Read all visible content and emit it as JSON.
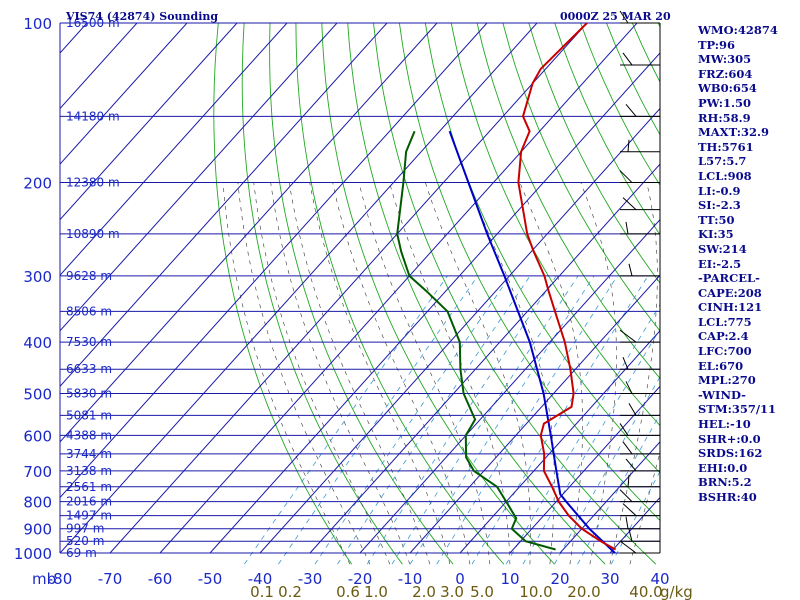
{
  "header": {
    "title": "VIS74 (42874) Sounding",
    "time": "0000Z 25 MAR 20"
  },
  "colors": {
    "grid": "#1a1aa8",
    "dry_adiabat": "#22a822",
    "moist_adiabat": "#333333",
    "mixing_ratio": "#3a9ad6",
    "temperature": "#c80000",
    "dewpoint": "#005a00",
    "parcel": "#0000c8",
    "wind": "#000000"
  },
  "chart_data": {
    "type": "skew-t",
    "title": "VIS74 (42874) Sounding",
    "pressure_axis": {
      "label": "mb",
      "unit": "hPa",
      "range": [
        1000,
        100
      ],
      "ticks": [
        100,
        200,
        300,
        400,
        500,
        600,
        700,
        800,
        900,
        1000
      ]
    },
    "temperature_axis": {
      "unit": "C",
      "range": [
        -80,
        40
      ],
      "ticks": [
        -80,
        -70,
        -60,
        -50,
        -40,
        -30,
        -20,
        -10,
        0,
        10,
        20,
        30,
        40
      ]
    },
    "mixing_ratio_labels": [
      "0.1",
      "0.2",
      "0.6",
      "1.0",
      "2.0",
      "3.0",
      "5.0",
      "10.0",
      "20.0",
      "40.0",
      "g/kg"
    ],
    "height_labels": [
      {
        "p": 100,
        "label": "16500 m"
      },
      {
        "p": 150,
        "label": "14180 m"
      },
      {
        "p": 200,
        "label": "12380 m"
      },
      {
        "p": 250,
        "label": "10890 m"
      },
      {
        "p": 300,
        "label": "9628 m"
      },
      {
        "p": 350,
        "label": "8506 m"
      },
      {
        "p": 400,
        "label": "7530 m"
      },
      {
        "p": 450,
        "label": "6633 m"
      },
      {
        "p": 500,
        "label": "5830 m"
      },
      {
        "p": 550,
        "label": "5081 m"
      },
      {
        "p": 600,
        "label": "4388 m"
      },
      {
        "p": 650,
        "label": "3744 m"
      },
      {
        "p": 700,
        "label": "3138 m"
      },
      {
        "p": 750,
        "label": "2561 m"
      },
      {
        "p": 800,
        "label": "2016 m"
      },
      {
        "p": 850,
        "label": "1497 m"
      },
      {
        "p": 900,
        "label": "997 m"
      },
      {
        "p": 950,
        "label": "520 m"
      },
      {
        "p": 1000,
        "label": "69 m"
      }
    ],
    "temperature_profile": [
      {
        "p": 985,
        "t": 30.5
      },
      {
        "p": 950,
        "t": 26
      },
      {
        "p": 900,
        "t": 20
      },
      {
        "p": 850,
        "t": 15
      },
      {
        "p": 800,
        "t": 10.5
      },
      {
        "p": 750,
        "t": 6.5
      },
      {
        "p": 700,
        "t": 2
      },
      {
        "p": 650,
        "t": -1
      },
      {
        "p": 600,
        "t": -5
      },
      {
        "p": 570,
        "t": -6.5
      },
      {
        "p": 530,
        "t": -4
      },
      {
        "p": 500,
        "t": -6
      },
      {
        "p": 450,
        "t": -11
      },
      {
        "p": 400,
        "t": -17
      },
      {
        "p": 350,
        "t": -24.5
      },
      {
        "p": 320,
        "t": -29.5
      },
      {
        "p": 300,
        "t": -33
      },
      {
        "p": 270,
        "t": -39.5
      },
      {
        "p": 250,
        "t": -44
      },
      {
        "p": 200,
        "t": -55
      },
      {
        "p": 175,
        "t": -60
      },
      {
        "p": 160,
        "t": -62
      },
      {
        "p": 150,
        "t": -66
      },
      {
        "p": 130,
        "t": -70
      },
      {
        "p": 122,
        "t": -71
      },
      {
        "p": 100,
        "t": -70
      }
    ],
    "dewpoint_profile": [
      {
        "p": 985,
        "t": 18.5
      },
      {
        "p": 950,
        "t": 11
      },
      {
        "p": 900,
        "t": 6
      },
      {
        "p": 860,
        "t": 5
      },
      {
        "p": 800,
        "t": 0
      },
      {
        "p": 750,
        "t": -4.5
      },
      {
        "p": 700,
        "t": -12
      },
      {
        "p": 660,
        "t": -16
      },
      {
        "p": 600,
        "t": -20
      },
      {
        "p": 560,
        "t": -21
      },
      {
        "p": 500,
        "t": -28
      },
      {
        "p": 450,
        "t": -33
      },
      {
        "p": 400,
        "t": -38
      },
      {
        "p": 350,
        "t": -46
      },
      {
        "p": 320,
        "t": -54
      },
      {
        "p": 300,
        "t": -60
      },
      {
        "p": 270,
        "t": -66
      },
      {
        "p": 250,
        "t": -70
      },
      {
        "p": 200,
        "t": -78
      },
      {
        "p": 175,
        "t": -83
      },
      {
        "p": 160,
        "t": -85
      }
    ],
    "parcel_profile": [
      {
        "p": 1000,
        "t": 31
      },
      {
        "p": 900,
        "t": 21.5
      },
      {
        "p": 800,
        "t": 12
      },
      {
        "p": 775,
        "t": 9.5
      },
      {
        "p": 700,
        "t": 4.5
      },
      {
        "p": 600,
        "t": -3
      },
      {
        "p": 500,
        "t": -12
      },
      {
        "p": 400,
        "t": -24
      },
      {
        "p": 300,
        "t": -41
      },
      {
        "p": 250,
        "t": -52
      },
      {
        "p": 200,
        "t": -65
      },
      {
        "p": 160,
        "t": -78
      }
    ],
    "wind_pressures": [
      100,
      120,
      150,
      175,
      200,
      225,
      250,
      300,
      400,
      450,
      500,
      550,
      600,
      650,
      700,
      750,
      800,
      850,
      900,
      950,
      1000
    ]
  },
  "indices": [
    "WMO:42874",
    "TP:96",
    "MW:305",
    "FRZ:604",
    "WB0:654",
    "PW:1.50",
    "RH:58.9",
    "MAXT:32.9",
    "TH:5761",
    "L57:5.7",
    "LCL:908",
    "LI:-0.9",
    "SI:-2.3",
    "TT:50",
    "KI:35",
    "SW:214",
    "EI:-2.5",
    "-PARCEL-",
    "CAPE:208",
    "CINH:121",
    "LCL:775",
    "CAP:2.4",
    "LFC:700",
    "EL:670",
    "MPL:270",
    "-WIND-",
    "STM:357/11",
    "HEL:-10",
    "SHR+:0.0",
    "SRDS:162",
    "EHI:0.0",
    "BRN:5.2",
    "BSHR:40"
  ]
}
